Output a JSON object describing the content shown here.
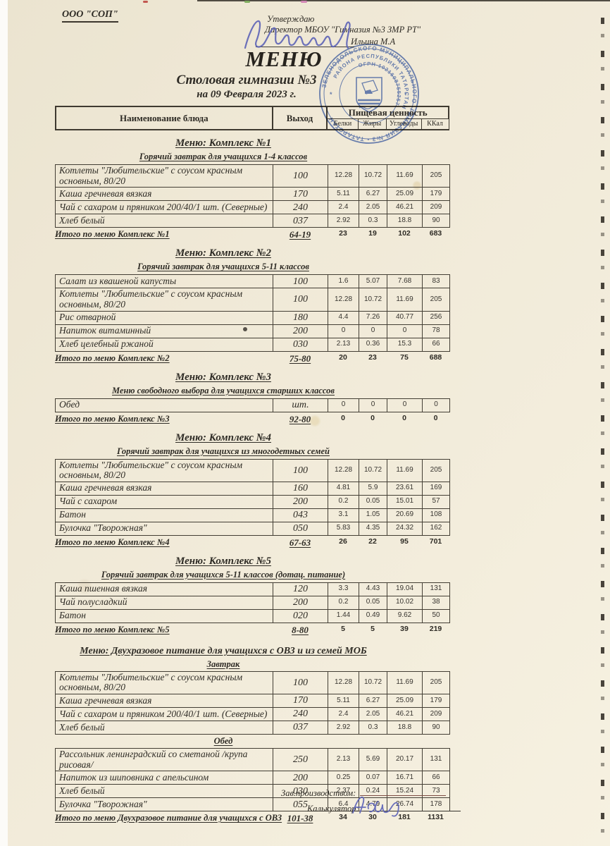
{
  "header": {
    "org": "ООО \"СОП\"",
    "approve_line1": "Утверждаю",
    "approve_line2": "Директор МБОУ \"Гимназия №3 ЗМР РТ\"",
    "approver": "Ильина М.А",
    "title": "МЕНЮ",
    "subtitle": "Столовая гимназии №3",
    "date": "на 09 Февраля 2023 г."
  },
  "table_header": {
    "name": "Наименование блюда",
    "out": "Выход",
    "nutrition": "Пищевая ценность",
    "sub": [
      "Белки",
      "Жиры",
      "Углеводы",
      "ККал"
    ]
  },
  "sections": [
    {
      "title": "Меню: Комплекс №1",
      "subtitle": "Горячий завтрак для учащихся 1-4 классов",
      "groups": [
        {
          "rows": [
            [
              "Котлеты  \"Любительские\" с соусом красным основным, 80/20",
              "100",
              "12.28",
              "10.72",
              "11.69",
              "205"
            ],
            [
              "Каша гречневая вязкая",
              "170",
              "5.11",
              "6.27",
              "25.09",
              "179"
            ],
            [
              "Чай с сахаром и пряником 200/40/1 шт. (Северные)",
              "240",
              "2.4",
              "2.05",
              "46.21",
              "209"
            ],
            [
              "Хлеб белый",
              "037",
              "2.92",
              "0.3",
              "18.8",
              "90"
            ]
          ]
        }
      ],
      "total": [
        "Итого по меню Комплекс №1",
        "64-19",
        "23",
        "19",
        "102",
        "683"
      ]
    },
    {
      "title": "Меню: Комплекс №2",
      "subtitle": "Горячий завтрак для учащихся 5-11 классов",
      "groups": [
        {
          "rows": [
            [
              "Салат из квашеной капусты",
              "100",
              "1.6",
              "5.07",
              "7.68",
              "83"
            ],
            [
              "Котлеты  \"Любительские\" с соусом красным основным, 80/20",
              "100",
              "12.28",
              "10.72",
              "11.69",
              "205"
            ],
            [
              "Рис отварной",
              "180",
              "4.4",
              "7.26",
              "40.77",
              "256"
            ],
            [
              "Напиток витаминный",
              "200",
              "0",
              "0",
              "0",
              "78"
            ],
            [
              "Хлеб  целебный ржаной",
              "030",
              "2.13",
              "0.36",
              "15.3",
              "66"
            ]
          ]
        }
      ],
      "total": [
        "Итого по меню Комплекс №2",
        "75-80",
        "20",
        "23",
        "75",
        "688"
      ]
    },
    {
      "title": "Меню: Комплекс №3",
      "subtitle": "Меню свободного выбора для учащихся старших классов",
      "groups": [
        {
          "rows": [
            [
              "Обед",
              "шт.",
              "0",
              "0",
              "0",
              "0"
            ]
          ]
        }
      ],
      "total": [
        "Итого по меню Комплекс №3",
        "92-80",
        "0",
        "0",
        "0",
        "0"
      ]
    },
    {
      "title": "Меню: Комплекс №4",
      "subtitle": "Горячий завтрак для учащихся из многодетных семей",
      "groups": [
        {
          "rows": [
            [
              "Котлеты  \"Любительские\" с соусом красным основным, 80/20",
              "100",
              "12.28",
              "10.72",
              "11.69",
              "205"
            ],
            [
              "Каша гречневая вязкая",
              "160",
              "4.81",
              "5.9",
              "23.61",
              "169"
            ],
            [
              "Чай с сахаром",
              "200",
              "0.2",
              "0.05",
              "15.01",
              "57"
            ],
            [
              "Батон",
              "043",
              "3.1",
              "1.05",
              "20.69",
              "108"
            ],
            [
              "Булочка \"Творожная\"",
              "050",
              "5.83",
              "4.35",
              "24.32",
              "162"
            ]
          ]
        }
      ],
      "total": [
        "Итого по меню Комплекс №4",
        "67-63",
        "26",
        "22",
        "95",
        "701"
      ]
    },
    {
      "title": "Меню: Комплекс №5",
      "subtitle": "Горячий завтрак для учащихся 5-11 классов (дотац. питание)",
      "groups": [
        {
          "rows": [
            [
              "Каша пшенная вязкая",
              "120",
              "3.3",
              "4.43",
              "19.04",
              "131"
            ],
            [
              "Чай полусладкий",
              "200",
              "0.2",
              "0.05",
              "10.02",
              "38"
            ],
            [
              "Батон",
              "020",
              "1.44",
              "0.49",
              "9.62",
              "50"
            ]
          ]
        }
      ],
      "total": [
        "Итого по меню Комплекс №5",
        "8-80",
        "5",
        "5",
        "39",
        "219"
      ]
    },
    {
      "title": "Меню: Двухразовое питание для учащихся с ОВЗ и из семей МОБ",
      "subtitle": "",
      "groups": [
        {
          "heading": "Завтрак",
          "rows": [
            [
              "Котлеты  \"Любительские\" с соусом красным основным, 80/20",
              "100",
              "12.28",
              "10.72",
              "11.69",
              "205"
            ],
            [
              "Каша гречневая вязкая",
              "170",
              "5.11",
              "6.27",
              "25.09",
              "179"
            ],
            [
              "Чай с сахаром и пряником 200/40/1 шт. (Северные)",
              "240",
              "2.4",
              "2.05",
              "46.21",
              "209"
            ],
            [
              "Хлеб белый",
              "037",
              "2.92",
              "0.3",
              "18.8",
              "90"
            ]
          ]
        },
        {
          "heading": "Обед",
          "rows": [
            [
              "Рассольник ленинградский со сметаной /крупа рисовая/",
              "250",
              "2.13",
              "5.69",
              "20.17",
              "131"
            ],
            [
              "Напиток из шиповника с апельсином",
              "200",
              "0.25",
              "0.07",
              "16.71",
              "66"
            ],
            [
              "Хлеб белый",
              "030",
              "2.37",
              "0.24",
              "15.24",
              "73"
            ],
            [
              "Булочка \"Творожная\"",
              "055",
              "6.4",
              "4.79",
              "26.74",
              "178"
            ]
          ]
        }
      ],
      "total": [
        "Итого по меню Двухразовое питание для учащихся с ОВЗ",
        "101-38",
        "34",
        "30",
        "181",
        "1131"
      ]
    }
  ],
  "footer": {
    "manager_label": "Зав.производством:",
    "calculator_label": "Калькулятор:"
  },
  "stamp": {
    "ring_outer_top": "ЗЕЛЕНОДОЛЬСКОГО МУНИЦИПАЛЬНОГО",
    "ring_outer_bottom": "ГИМНАЗИЯ №3 • ТАТАРСТАН",
    "ring_mid": "РАЙОНА РЕСПУБЛИКИ ТАТАРСТАН",
    "ring_inner": "ОГРН 1021608755257",
    "color": "#4d6ec0"
  }
}
